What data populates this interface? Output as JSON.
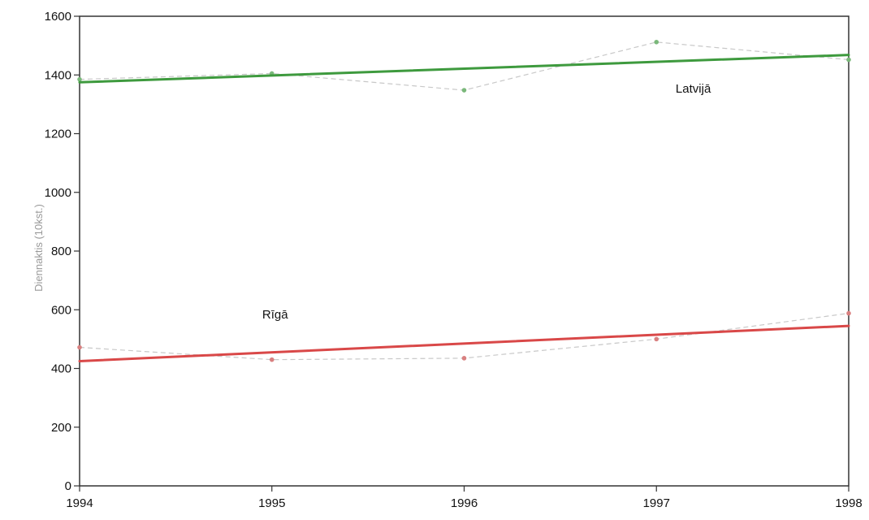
{
  "chart_data": {
    "type": "line",
    "title": "",
    "xlabel": "",
    "ylabel": "Diennaktis (10kst.)",
    "x": [
      1994,
      1995,
      1996,
      1997,
      1998
    ],
    "xlim": [
      1994,
      1998
    ],
    "ylim": [
      0,
      1600
    ],
    "yticks": [
      0,
      200,
      400,
      600,
      800,
      1000,
      1200,
      1400,
      1600
    ],
    "grid": false,
    "legend": "none",
    "series": [
      {
        "name": "Latvijā",
        "values": [
          1385,
          1405,
          1348,
          1512,
          1452
        ],
        "trend": [
          1375,
          1468
        ],
        "point_color": "#7ab87a",
        "trend_color": "#3e9a3e"
      },
      {
        "name": "Rīgā",
        "values": [
          472,
          430,
          435,
          500,
          588
        ],
        "trend": [
          425,
          545
        ],
        "point_color": "#d98080",
        "trend_color": "#d94848"
      }
    ],
    "annotations": [
      {
        "text": "Latvijā",
        "x": 1997.1,
        "y": 1340
      },
      {
        "text": "Rīgā",
        "x": 1994.95,
        "y": 570
      }
    ]
  }
}
